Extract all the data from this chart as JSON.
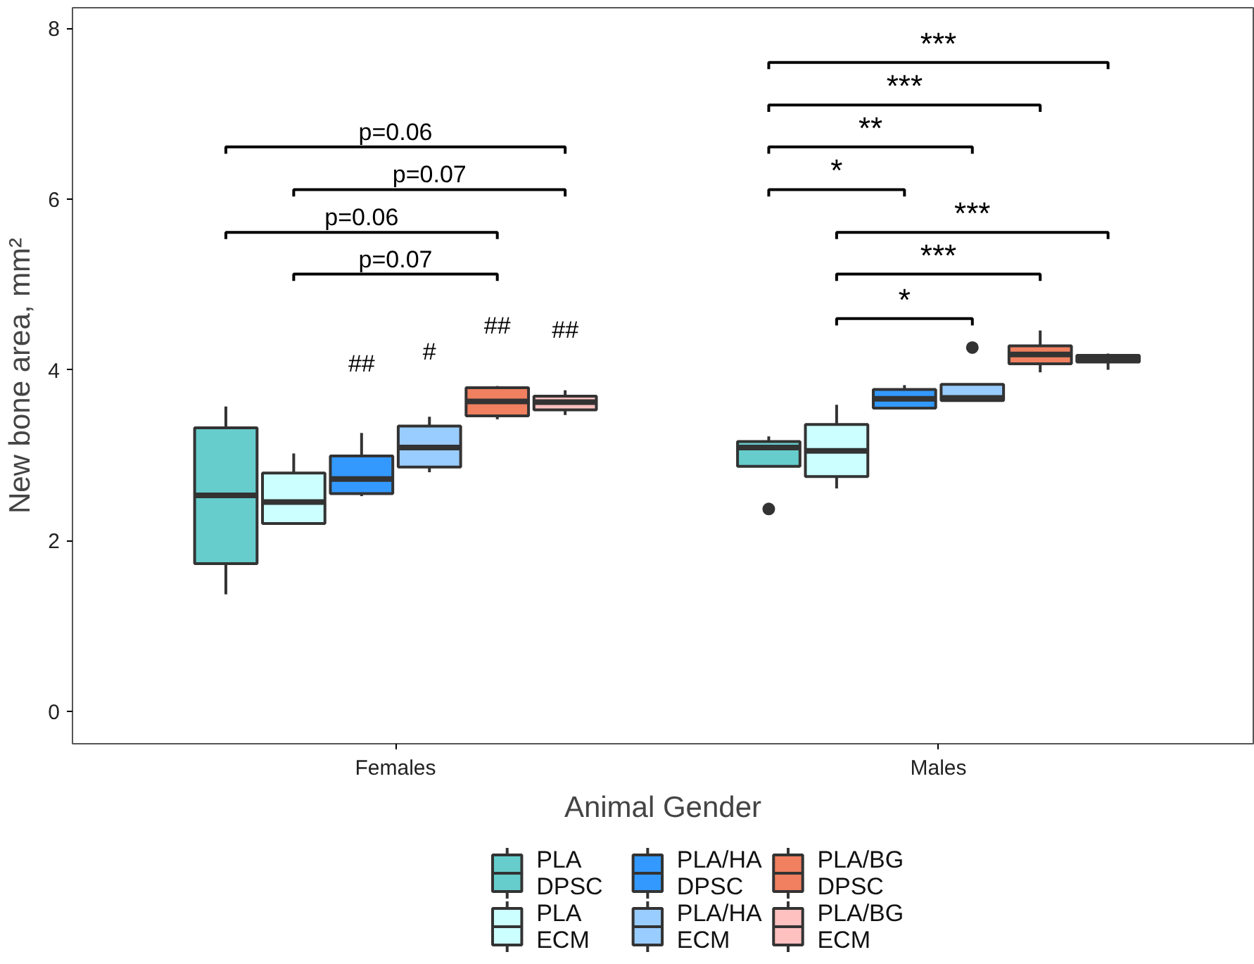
{
  "chart_data": {
    "type": "box",
    "xlabel": "Animal Gender",
    "ylabel": "New bone area, mm²",
    "categories": [
      "Females",
      "Males"
    ],
    "ylim": [
      -0.38,
      8.24
    ],
    "yticks": [
      0,
      2,
      4,
      6,
      8
    ],
    "grid": false,
    "legend": "bottom",
    "series": [
      {
        "name": "PLA DPSC",
        "color": "#66cdcc",
        "boxes": [
          {
            "low": 1.37,
            "q1": 1.73,
            "median": 2.53,
            "q3": 3.32,
            "high": 3.57
          },
          {
            "low": 2.87,
            "q1": 2.87,
            "median": 3.09,
            "q3": 3.16,
            "high": 3.22,
            "outliers": [
              2.37
            ]
          }
        ]
      },
      {
        "name": "PLA ECM",
        "color": "#ccffff",
        "boxes": [
          {
            "low": 2.2,
            "q1": 2.2,
            "median": 2.45,
            "q3": 2.79,
            "high": 3.02
          },
          {
            "low": 2.61,
            "q1": 2.75,
            "median": 3.05,
            "q3": 3.36,
            "high": 3.59
          }
        ]
      },
      {
        "name": "PLA/HA DPSC",
        "color": "#3399ff",
        "boxes": [
          {
            "low": 2.52,
            "q1": 2.55,
            "median": 2.72,
            "q3": 2.99,
            "high": 3.26
          },
          {
            "low": 3.55,
            "q1": 3.55,
            "median": 3.66,
            "q3": 3.77,
            "high": 3.82
          }
        ]
      },
      {
        "name": "PLA/HA ECM",
        "color": "#99ccff",
        "boxes": [
          {
            "low": 2.8,
            "q1": 2.86,
            "median": 3.09,
            "q3": 3.34,
            "high": 3.45
          },
          {
            "low": 3.64,
            "q1": 3.64,
            "median": 3.67,
            "q3": 3.83,
            "high": 3.83,
            "outliers": [
              4.26
            ]
          }
        ]
      },
      {
        "name": "PLA/BG DPSC",
        "color": "#f08060",
        "boxes": [
          {
            "low": 3.42,
            "q1": 3.46,
            "median": 3.63,
            "q3": 3.79,
            "high": 3.81
          },
          {
            "low": 3.97,
            "q1": 4.07,
            "median": 4.18,
            "q3": 4.28,
            "high": 4.46
          }
        ]
      },
      {
        "name": "PLA/BG ECM",
        "color": "#ffc0c0",
        "boxes": [
          {
            "low": 3.47,
            "q1": 3.53,
            "median": 3.62,
            "q3": 3.69,
            "high": 3.76
          },
          {
            "low": 4.0,
            "q1": 4.09,
            "median": 4.13,
            "q3": 4.17,
            "high": 4.19
          }
        ]
      }
    ],
    "annotations": [
      "p=0.06",
      "p=0.07",
      "p=0.06",
      "p=0.07",
      "***",
      "***",
      "**",
      "*",
      "***",
      "***",
      "*",
      "##",
      "#",
      "##",
      "##"
    ]
  }
}
